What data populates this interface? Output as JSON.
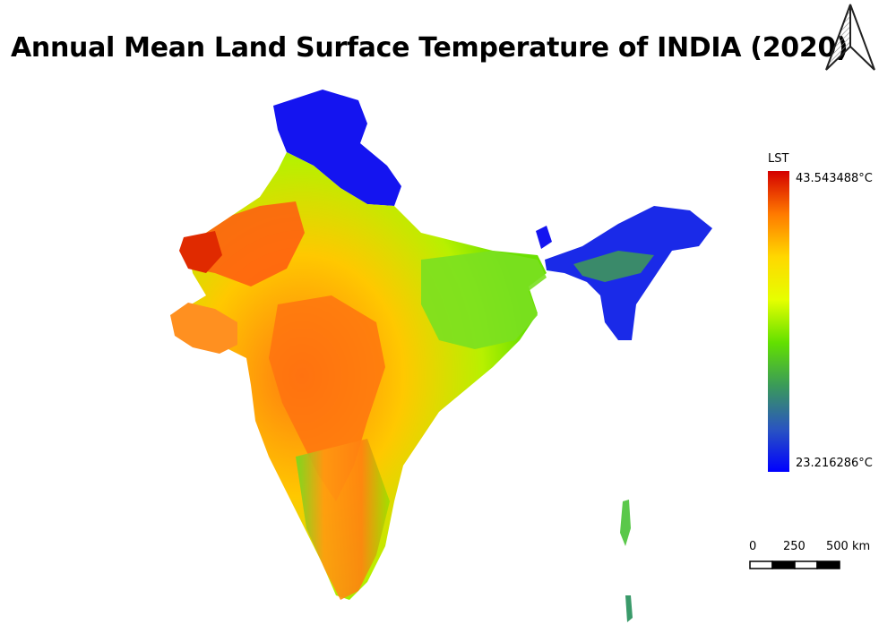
{
  "title": "Annual Mean Land Surface Temperature of INDIA (2020)",
  "legend": {
    "title": "LST",
    "max_label": "43.543488°C",
    "min_label": "23.216286°C",
    "max_value": 43.543488,
    "min_value": 23.216286,
    "colors": [
      "#d40000",
      "#ff7a00",
      "#ffd800",
      "#e6ff00",
      "#62e000",
      "#3a9a5a",
      "#2a55c0",
      "#0000ff"
    ]
  },
  "scale_bar": {
    "labels": [
      "0",
      "250",
      "500 km"
    ]
  },
  "icons": {
    "north_arrow": "north-arrow-icon"
  }
}
